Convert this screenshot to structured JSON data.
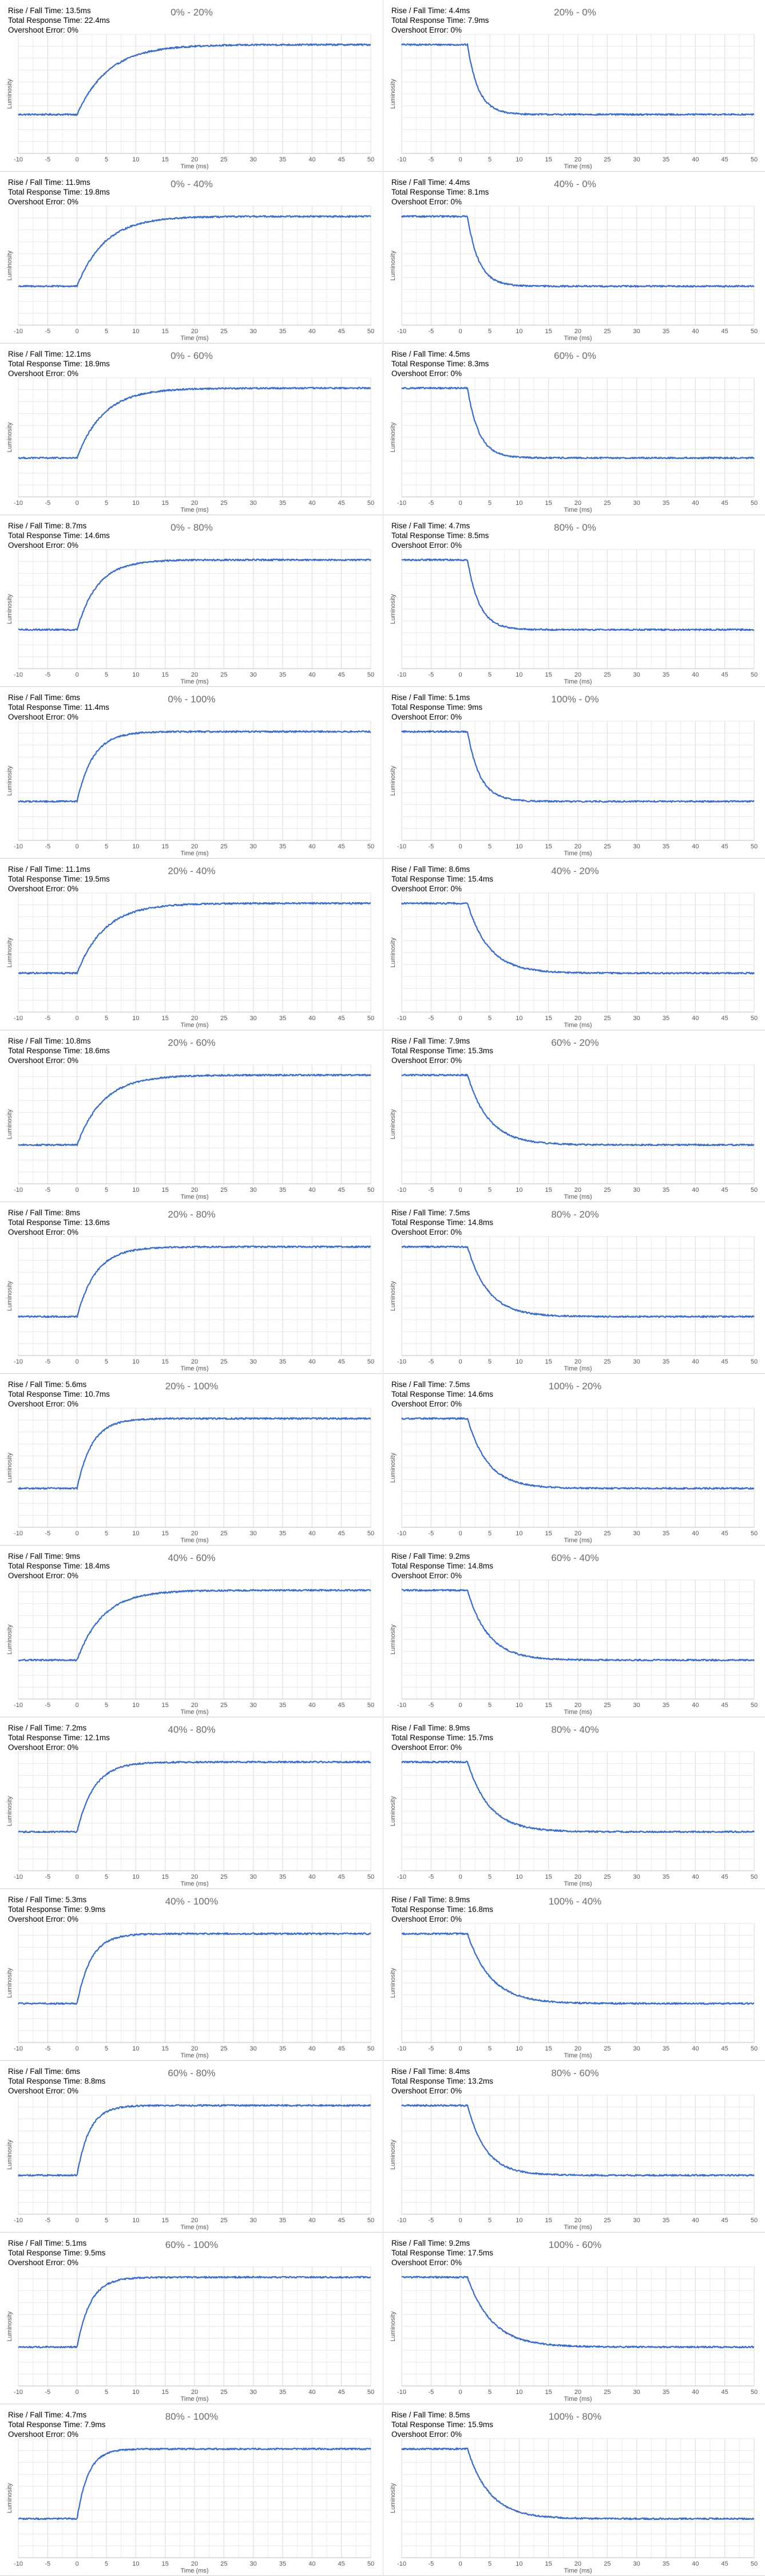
{
  "axis": {
    "x_label": "Time (ms)",
    "y_label": "Luminosity",
    "x_ticks": [
      "-10",
      "-5",
      "0",
      "5",
      "10",
      "15",
      "20",
      "25",
      "30",
      "35",
      "40",
      "45",
      "50"
    ],
    "line_color": "#3a6cc4",
    "grid": true
  },
  "panels": [
    {
      "title": "0% - 20%",
      "rise": "Rise / Fall Time: 13.5ms",
      "total": "Total Response Time: 22.4ms",
      "overshoot": "Overshoot Error: 0%"
    },
    {
      "title": "20% - 0%",
      "rise": "Rise / Fall Time: 4.4ms",
      "total": "Total Response Time: 7.9ms",
      "overshoot": "Overshoot Error: 0%"
    },
    {
      "title": "0% - 40%",
      "rise": "Rise / Fall Time: 11.9ms",
      "total": "Total Response Time: 19.8ms",
      "overshoot": "Overshoot Error: 0%"
    },
    {
      "title": "40% - 0%",
      "rise": "Rise / Fall Time: 4.4ms",
      "total": "Total Response Time: 8.1ms",
      "overshoot": "Overshoot Error: 0%"
    },
    {
      "title": "0% - 60%",
      "rise": "Rise / Fall Time: 12.1ms",
      "total": "Total Response Time: 18.9ms",
      "overshoot": "Overshoot Error: 0%"
    },
    {
      "title": "60% - 0%",
      "rise": "Rise / Fall Time: 4.5ms",
      "total": "Total Response Time: 8.3ms",
      "overshoot": "Overshoot Error: 0%"
    },
    {
      "title": "0% - 80%",
      "rise": "Rise / Fall Time: 8.7ms",
      "total": "Total Response Time: 14.6ms",
      "overshoot": "Overshoot Error: 0%"
    },
    {
      "title": "80% - 0%",
      "rise": "Rise / Fall Time: 4.7ms",
      "total": "Total Response Time: 8.5ms",
      "overshoot": "Overshoot Error: 0%"
    },
    {
      "title": "0% - 100%",
      "rise": "Rise / Fall Time: 6ms",
      "total": "Total Response Time: 11.4ms",
      "overshoot": "Overshoot Error: 0%"
    },
    {
      "title": "100% - 0%",
      "rise": "Rise / Fall Time: 5.1ms",
      "total": "Total Response Time: 9ms",
      "overshoot": "Overshoot Error: 0%"
    },
    {
      "title": "20% - 40%",
      "rise": "Rise / Fall Time: 11.1ms",
      "total": "Total Response Time: 19.5ms",
      "overshoot": "Overshoot Error: 0%"
    },
    {
      "title": "40% - 20%",
      "rise": "Rise / Fall Time: 8.6ms",
      "total": "Total Response Time: 15.4ms",
      "overshoot": "Overshoot Error: 0%"
    },
    {
      "title": "20% - 60%",
      "rise": "Rise / Fall Time: 10.8ms",
      "total": "Total Response Time: 18.6ms",
      "overshoot": "Overshoot Error: 0%"
    },
    {
      "title": "60% - 20%",
      "rise": "Rise / Fall Time: 7.9ms",
      "total": "Total Response Time: 15.3ms",
      "overshoot": "Overshoot Error: 0%"
    },
    {
      "title": "20% - 80%",
      "rise": "Rise / Fall Time: 8ms",
      "total": "Total Response Time: 13.6ms",
      "overshoot": "Overshoot Error: 0%"
    },
    {
      "title": "80% - 20%",
      "rise": "Rise / Fall Time: 7.5ms",
      "total": "Total Response Time: 14.8ms",
      "overshoot": "Overshoot Error: 0%"
    },
    {
      "title": "20% - 100%",
      "rise": "Rise / Fall Time: 5.6ms",
      "total": "Total Response Time: 10.7ms",
      "overshoot": "Overshoot Error: 0%"
    },
    {
      "title": "100% - 20%",
      "rise": "Rise / Fall Time: 7.5ms",
      "total": "Total Response Time: 14.6ms",
      "overshoot": "Overshoot Error: 0%"
    },
    {
      "title": "40% - 60%",
      "rise": "Rise / Fall Time: 9ms",
      "total": "Total Response Time: 18.4ms",
      "overshoot": "Overshoot Error: 0%"
    },
    {
      "title": "60% - 40%",
      "rise": "Rise / Fall Time: 9.2ms",
      "total": "Total Response Time: 14.8ms",
      "overshoot": "Overshoot Error: 0%"
    },
    {
      "title": "40% - 80%",
      "rise": "Rise / Fall Time: 7.2ms",
      "total": "Total Response Time: 12.1ms",
      "overshoot": "Overshoot Error: 0%"
    },
    {
      "title": "80% - 40%",
      "rise": "Rise / Fall Time: 8.9ms",
      "total": "Total Response Time: 15.7ms",
      "overshoot": "Overshoot Error: 0%"
    },
    {
      "title": "40% - 100%",
      "rise": "Rise / Fall Time: 5.3ms",
      "total": "Total Response Time: 9.9ms",
      "overshoot": "Overshoot Error: 0%"
    },
    {
      "title": "100% - 40%",
      "rise": "Rise / Fall Time: 8.9ms",
      "total": "Total Response Time: 16.8ms",
      "overshoot": "Overshoot Error: 0%"
    },
    {
      "title": "60% - 80%",
      "rise": "Rise / Fall Time: 6ms",
      "total": "Total Response Time: 8.8ms",
      "overshoot": "Overshoot Error: 0%"
    },
    {
      "title": "80% - 60%",
      "rise": "Rise / Fall Time: 8.4ms",
      "total": "Total Response Time: 13.2ms",
      "overshoot": "Overshoot Error: 0%"
    },
    {
      "title": "60% - 100%",
      "rise": "Rise / Fall Time: 5.1ms",
      "total": "Total Response Time: 9.5ms",
      "overshoot": "Overshoot Error: 0%"
    },
    {
      "title": "100% - 60%",
      "rise": "Rise / Fall Time: 9.2ms",
      "total": "Total Response Time: 17.5ms",
      "overshoot": "Overshoot Error: 0%"
    },
    {
      "title": "80% - 100%",
      "rise": "Rise / Fall Time: 4.7ms",
      "total": "Total Response Time: 7.9ms",
      "overshoot": "Overshoot Error: 0%"
    },
    {
      "title": "100% - 80%",
      "rise": "Rise / Fall Time: 8.5ms",
      "total": "Total Response Time: 15.9ms",
      "overshoot": "Overshoot Error: 0%"
    }
  ],
  "chart_data": [
    {
      "type": "line",
      "title": "0% - 20%",
      "direction": "rise",
      "xlabel": "Time (ms)",
      "ylabel": "Luminosity",
      "xlim": [
        -10,
        50
      ],
      "ylim": [
        0,
        1
      ],
      "start": 0.0,
      "end": 1.0,
      "transition_start_ms": 0,
      "settle_ms": 22.4
    },
    {
      "type": "line",
      "title": "20% - 0%",
      "direction": "fall",
      "xlabel": "Time (ms)",
      "ylabel": "Luminosity",
      "xlim": [
        -10,
        50
      ],
      "ylim": [
        0,
        1
      ],
      "start": 1.0,
      "end": 0.0,
      "transition_start_ms": 0,
      "settle_ms": 7.9
    },
    {
      "type": "line",
      "title": "0% - 40%",
      "direction": "rise",
      "xlabel": "Time (ms)",
      "ylabel": "Luminosity",
      "xlim": [
        -10,
        50
      ],
      "ylim": [
        0,
        1
      ],
      "start": 0.0,
      "end": 1.0,
      "transition_start_ms": 0,
      "settle_ms": 19.8
    },
    {
      "type": "line",
      "title": "40% - 0%",
      "direction": "fall",
      "xlabel": "Time (ms)",
      "ylabel": "Luminosity",
      "xlim": [
        -10,
        50
      ],
      "ylim": [
        0,
        1
      ],
      "start": 1.0,
      "end": 0.0,
      "transition_start_ms": 0,
      "settle_ms": 8.1
    },
    {
      "type": "line",
      "title": "0% - 60%",
      "direction": "rise",
      "xlabel": "Time (ms)",
      "ylabel": "Luminosity",
      "xlim": [
        -10,
        50
      ],
      "ylim": [
        0,
        1
      ],
      "start": 0.0,
      "end": 1.0,
      "transition_start_ms": 0,
      "settle_ms": 18.9
    },
    {
      "type": "line",
      "title": "60% - 0%",
      "direction": "fall",
      "xlabel": "Time (ms)",
      "ylabel": "Luminosity",
      "xlim": [
        -10,
        50
      ],
      "ylim": [
        0,
        1
      ],
      "start": 1.0,
      "end": 0.0,
      "transition_start_ms": 0,
      "settle_ms": 8.3
    },
    {
      "type": "line",
      "title": "0% - 80%",
      "direction": "rise",
      "xlabel": "Time (ms)",
      "ylabel": "Luminosity",
      "xlim": [
        -10,
        50
      ],
      "ylim": [
        0,
        1
      ],
      "start": 0.0,
      "end": 1.0,
      "transition_start_ms": 0,
      "settle_ms": 14.6
    },
    {
      "type": "line",
      "title": "80% - 0%",
      "direction": "fall",
      "xlabel": "Time (ms)",
      "ylabel": "Luminosity",
      "xlim": [
        -10,
        50
      ],
      "ylim": [
        0,
        1
      ],
      "start": 1.0,
      "end": 0.0,
      "transition_start_ms": 0,
      "settle_ms": 8.5
    },
    {
      "type": "line",
      "title": "0% - 100%",
      "direction": "rise",
      "xlabel": "Time (ms)",
      "ylabel": "Luminosity",
      "xlim": [
        -10,
        50
      ],
      "ylim": [
        0,
        1
      ],
      "start": 0.0,
      "end": 1.0,
      "transition_start_ms": 0,
      "settle_ms": 11.4
    },
    {
      "type": "line",
      "title": "100% - 0%",
      "direction": "fall",
      "xlabel": "Time (ms)",
      "ylabel": "Luminosity",
      "xlim": [
        -10,
        50
      ],
      "ylim": [
        0,
        1
      ],
      "start": 1.0,
      "end": 0.0,
      "transition_start_ms": 0,
      "settle_ms": 9.0
    },
    {
      "type": "line",
      "title": "20% - 40%",
      "direction": "rise",
      "xlabel": "Time (ms)",
      "ylabel": "Luminosity",
      "xlim": [
        -10,
        50
      ],
      "ylim": [
        0,
        1
      ],
      "start": 0.0,
      "end": 1.0,
      "transition_start_ms": 0,
      "settle_ms": 19.5
    },
    {
      "type": "line",
      "title": "40% - 20%",
      "direction": "fall",
      "xlabel": "Time (ms)",
      "ylabel": "Luminosity",
      "xlim": [
        -10,
        50
      ],
      "ylim": [
        0,
        1
      ],
      "start": 1.0,
      "end": 0.0,
      "transition_start_ms": 0,
      "settle_ms": 15.4
    },
    {
      "type": "line",
      "title": "20% - 60%",
      "direction": "rise",
      "xlabel": "Time (ms)",
      "ylabel": "Luminosity",
      "xlim": [
        -10,
        50
      ],
      "ylim": [
        0,
        1
      ],
      "start": 0.0,
      "end": 1.0,
      "transition_start_ms": 0,
      "settle_ms": 18.6
    },
    {
      "type": "line",
      "title": "60% - 20%",
      "direction": "fall",
      "xlabel": "Time (ms)",
      "ylabel": "Luminosity",
      "xlim": [
        -10,
        50
      ],
      "ylim": [
        0,
        1
      ],
      "start": 1.0,
      "end": 0.0,
      "transition_start_ms": 0,
      "settle_ms": 15.3
    },
    {
      "type": "line",
      "title": "20% - 80%",
      "direction": "rise",
      "xlabel": "Time (ms)",
      "ylabel": "Luminosity",
      "xlim": [
        -10,
        50
      ],
      "ylim": [
        0,
        1
      ],
      "start": 0.0,
      "end": 1.0,
      "transition_start_ms": 0,
      "settle_ms": 13.6
    },
    {
      "type": "line",
      "title": "80% - 20%",
      "direction": "fall",
      "xlabel": "Time (ms)",
      "ylabel": "Luminosity",
      "xlim": [
        -10,
        50
      ],
      "ylim": [
        0,
        1
      ],
      "start": 1.0,
      "end": 0.0,
      "transition_start_ms": 0,
      "settle_ms": 14.8
    },
    {
      "type": "line",
      "title": "20% - 100%",
      "direction": "rise",
      "xlabel": "Time (ms)",
      "ylabel": "Luminosity",
      "xlim": [
        -10,
        50
      ],
      "ylim": [
        0,
        1
      ],
      "start": 0.0,
      "end": 1.0,
      "transition_start_ms": 0,
      "settle_ms": 10.7
    },
    {
      "type": "line",
      "title": "100% - 20%",
      "direction": "fall",
      "xlabel": "Time (ms)",
      "ylabel": "Luminosity",
      "xlim": [
        -10,
        50
      ],
      "ylim": [
        0,
        1
      ],
      "start": 1.0,
      "end": 0.0,
      "transition_start_ms": 0,
      "settle_ms": 14.6
    },
    {
      "type": "line",
      "title": "40% - 60%",
      "direction": "rise",
      "xlabel": "Time (ms)",
      "ylabel": "Luminosity",
      "xlim": [
        -10,
        50
      ],
      "ylim": [
        0,
        1
      ],
      "start": 0.0,
      "end": 1.0,
      "transition_start_ms": 0,
      "settle_ms": 18.4
    },
    {
      "type": "line",
      "title": "60% - 40%",
      "direction": "fall",
      "xlabel": "Time (ms)",
      "ylabel": "Luminosity",
      "xlim": [
        -10,
        50
      ],
      "ylim": [
        0,
        1
      ],
      "start": 1.0,
      "end": 0.0,
      "transition_start_ms": 0,
      "settle_ms": 14.8
    },
    {
      "type": "line",
      "title": "40% - 80%",
      "direction": "rise",
      "xlabel": "Time (ms)",
      "ylabel": "Luminosity",
      "xlim": [
        -10,
        50
      ],
      "ylim": [
        0,
        1
      ],
      "start": 0.0,
      "end": 1.0,
      "transition_start_ms": 0,
      "settle_ms": 12.1
    },
    {
      "type": "line",
      "title": "80% - 40%",
      "direction": "fall",
      "xlabel": "Time (ms)",
      "ylabel": "Luminosity",
      "xlim": [
        -10,
        50
      ],
      "ylim": [
        0,
        1
      ],
      "start": 1.0,
      "end": 0.0,
      "transition_start_ms": 0,
      "settle_ms": 15.7
    },
    {
      "type": "line",
      "title": "40% - 100%",
      "direction": "rise",
      "xlabel": "Time (ms)",
      "ylabel": "Luminosity",
      "xlim": [
        -10,
        50
      ],
      "ylim": [
        0,
        1
      ],
      "start": 0.0,
      "end": 1.0,
      "transition_start_ms": 0,
      "settle_ms": 9.9
    },
    {
      "type": "line",
      "title": "100% - 40%",
      "direction": "fall",
      "xlabel": "Time (ms)",
      "ylabel": "Luminosity",
      "xlim": [
        -10,
        50
      ],
      "ylim": [
        0,
        1
      ],
      "start": 1.0,
      "end": 0.0,
      "transition_start_ms": 0,
      "settle_ms": 16.8
    },
    {
      "type": "line",
      "title": "60% - 80%",
      "direction": "rise",
      "xlabel": "Time (ms)",
      "ylabel": "Luminosity",
      "xlim": [
        -10,
        50
      ],
      "ylim": [
        0,
        1
      ],
      "start": 0.0,
      "end": 1.0,
      "transition_start_ms": 0,
      "settle_ms": 8.8
    },
    {
      "type": "line",
      "title": "80% - 60%",
      "direction": "fall",
      "xlabel": "Time (ms)",
      "ylabel": "Luminosity",
      "xlim": [
        -10,
        50
      ],
      "ylim": [
        0,
        1
      ],
      "start": 1.0,
      "end": 0.0,
      "transition_start_ms": 0,
      "settle_ms": 13.2
    },
    {
      "type": "line",
      "title": "60% - 100%",
      "direction": "rise",
      "xlabel": "Time (ms)",
      "ylabel": "Luminosity",
      "xlim": [
        -10,
        50
      ],
      "ylim": [
        0,
        1
      ],
      "start": 0.0,
      "end": 1.0,
      "transition_start_ms": 0,
      "settle_ms": 9.5
    },
    {
      "type": "line",
      "title": "100% - 60%",
      "direction": "fall",
      "xlabel": "Time (ms)",
      "ylabel": "Luminosity",
      "xlim": [
        -10,
        50
      ],
      "ylim": [
        0,
        1
      ],
      "start": 1.0,
      "end": 0.0,
      "transition_start_ms": 0,
      "settle_ms": 17.5
    },
    {
      "type": "line",
      "title": "80% - 100%",
      "direction": "rise",
      "xlabel": "Time (ms)",
      "ylabel": "Luminosity",
      "xlim": [
        -10,
        50
      ],
      "ylim": [
        0,
        1
      ],
      "start": 0.0,
      "end": 1.0,
      "transition_start_ms": 0,
      "settle_ms": 7.9
    },
    {
      "type": "line",
      "title": "100% - 80%",
      "direction": "fall",
      "xlabel": "Time (ms)",
      "ylabel": "Luminosity",
      "xlim": [
        -10,
        50
      ],
      "ylim": [
        0,
        1
      ],
      "start": 1.0,
      "end": 0.0,
      "transition_start_ms": 0,
      "settle_ms": 15.9
    }
  ]
}
